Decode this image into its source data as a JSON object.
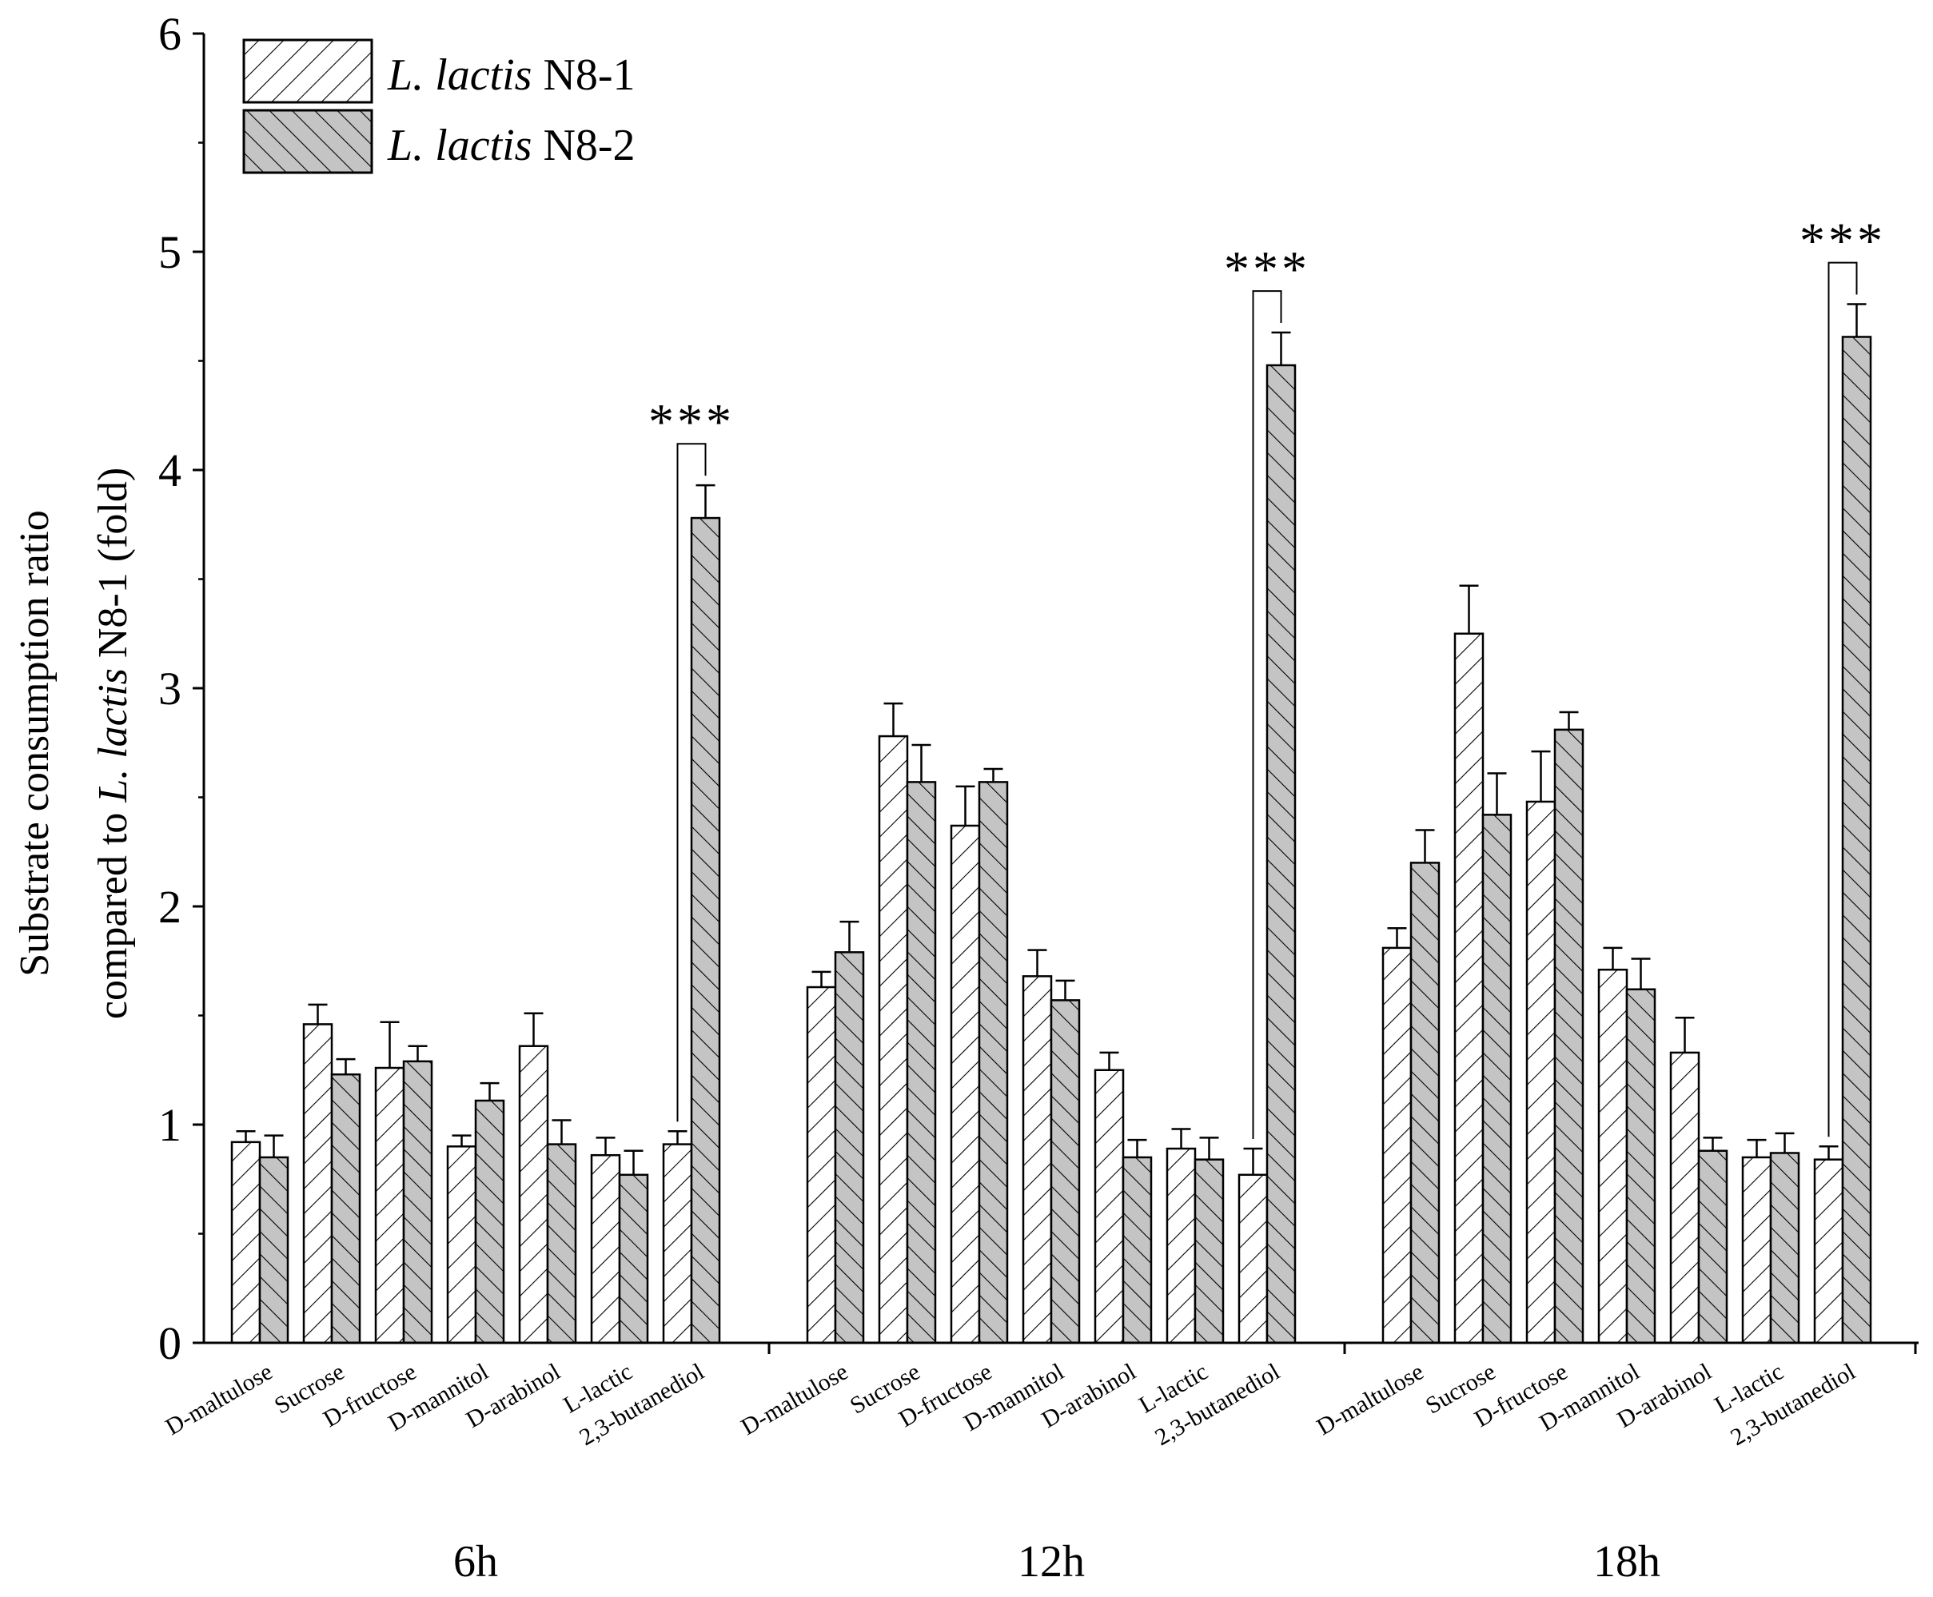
{
  "chart_data": {
    "type": "bar",
    "title": "",
    "ylabel_line1": "Substrate consumption ratio",
    "ylabel_line2_prefix": "compared to ",
    "ylabel_line2_italic": "L. lactis",
    "ylabel_line2_suffix": " N8-1 (fold)",
    "ylim": [
      0,
      6
    ],
    "yticks": [
      "0",
      "1",
      "2",
      "3",
      "4",
      "5",
      "6"
    ],
    "grid": false,
    "legend_position": "top-left",
    "categories": [
      "D-maltulose",
      "Sucrose",
      "D-fructose",
      "D-mannitol",
      "D-arabinol",
      "L-lactic",
      "2,3-butanediol"
    ],
    "groups": [
      "6h",
      "12h",
      "18h"
    ],
    "series": [
      {
        "name_italic": "L. lactis",
        "name_suffix": " N8-1",
        "pattern": "forward-hatch-white",
        "color": "#ffffff",
        "values": [
          [
            0.92,
            1.46,
            1.26,
            0.9,
            1.36,
            0.86,
            0.91
          ],
          [
            1.63,
            2.78,
            2.37,
            1.68,
            1.25,
            0.89,
            0.77
          ],
          [
            1.81,
            3.25,
            2.48,
            1.71,
            1.33,
            0.85,
            0.84
          ]
        ],
        "errors": [
          [
            0.05,
            0.09,
            0.21,
            0.05,
            0.15,
            0.08,
            0.06
          ],
          [
            0.07,
            0.15,
            0.18,
            0.12,
            0.08,
            0.09,
            0.12
          ],
          [
            0.09,
            0.22,
            0.23,
            0.1,
            0.16,
            0.08,
            0.06
          ]
        ]
      },
      {
        "name_italic": "L. lactis",
        "name_suffix": " N8-2",
        "pattern": "back-hatch-gray",
        "color": "#c4c4c4",
        "values": [
          [
            0.85,
            1.23,
            1.29,
            1.11,
            0.91,
            0.77,
            3.78
          ],
          [
            1.79,
            2.57,
            2.57,
            1.57,
            0.85,
            0.84,
            4.48
          ],
          [
            2.2,
            2.42,
            2.81,
            1.62,
            0.88,
            0.87,
            4.61
          ]
        ],
        "errors": [
          [
            0.1,
            0.07,
            0.07,
            0.08,
            0.11,
            0.11,
            0.15
          ],
          [
            0.14,
            0.17,
            0.06,
            0.09,
            0.08,
            0.1,
            0.15
          ],
          [
            0.15,
            0.19,
            0.08,
            0.14,
            0.06,
            0.09,
            0.15
          ]
        ]
      }
    ],
    "annotations": [
      {
        "group": 0,
        "category": 6,
        "text": "***",
        "top_value": 4.12
      },
      {
        "group": 1,
        "category": 6,
        "text": "***",
        "top_value": 4.82
      },
      {
        "group": 2,
        "category": 6,
        "text": "***",
        "top_value": 4.95
      }
    ]
  }
}
